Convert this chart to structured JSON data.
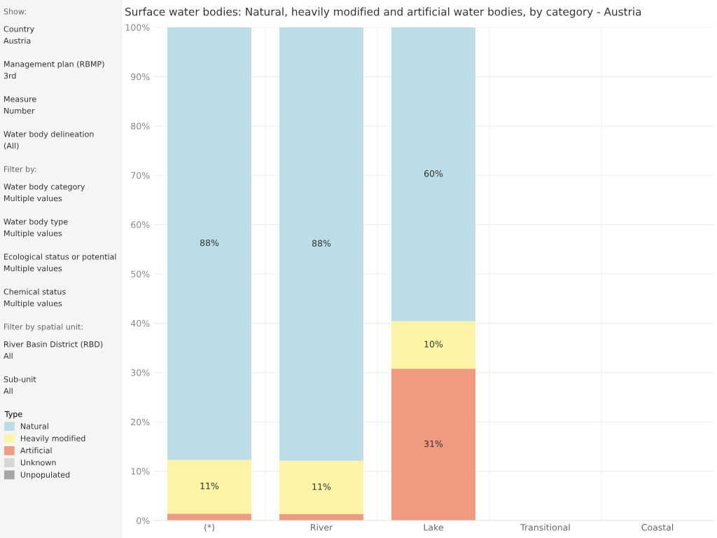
{
  "chart_data": {
    "type": "bar",
    "stacked": true,
    "title": "Surface water bodies: Natural, heavily modified and artificial water bodies, by category - Austria",
    "categories": [
      "(*)",
      "River",
      "Lake",
      "Transitional",
      "Coastal"
    ],
    "series": [
      {
        "name": "Artificial",
        "color": "#f19a82",
        "values": [
          1.4,
          1.3,
          30.8,
          null,
          null
        ],
        "value_labels": [
          null,
          null,
          "31%",
          null,
          null
        ]
      },
      {
        "name": "Heavily modified",
        "color": "#fdf5a6",
        "values": [
          10.9,
          10.8,
          9.6,
          null,
          null
        ],
        "value_labels": [
          "11%",
          "11%",
          "10%",
          null,
          null
        ]
      },
      {
        "name": "Natural",
        "color": "#bcdce7",
        "values": [
          87.7,
          87.9,
          59.6,
          null,
          null
        ],
        "value_labels": [
          "88%",
          "88%",
          "60%",
          null,
          null
        ]
      },
      {
        "name": "Unknown",
        "color": "#d6d6d6",
        "values": [
          null,
          null,
          null,
          null,
          null
        ]
      },
      {
        "name": "Unpopulated",
        "color": "#a6a6a6",
        "values": [
          null,
          null,
          null,
          null,
          null
        ]
      }
    ],
    "legend_title": "Type",
    "legend": "left",
    "ylim": [
      0,
      100
    ],
    "yticks": [
      {
        "value": 0,
        "label": "0%"
      },
      {
        "value": 10,
        "label": "10%"
      },
      {
        "value": 20,
        "label": "20%"
      },
      {
        "value": 30,
        "label": "30%"
      },
      {
        "value": 40,
        "label": "40%"
      },
      {
        "value": 50,
        "label": "50%"
      },
      {
        "value": 60,
        "label": "60%"
      },
      {
        "value": 70,
        "label": "70%"
      },
      {
        "value": 80,
        "label": "80%"
      },
      {
        "value": 90,
        "label": "90%"
      },
      {
        "value": 100,
        "label": "100%"
      }
    ],
    "grid": "y",
    "annotations": [
      "Show:",
      "Country\nAustria",
      "Management plan (RBMP)\n3rd",
      "Measure\nNumber",
      "Water body delineation\n(All)",
      "Filter by:",
      "Water body category\nMultiple values",
      "Water body type\nMultiple values",
      "Ecological status or potential\nMultiple values",
      "Chemical status\nMultiple values",
      "Filter by spatial unit:",
      "River Basin District (RBD)\nAll",
      "Sub-unit\nAll"
    ]
  }
}
